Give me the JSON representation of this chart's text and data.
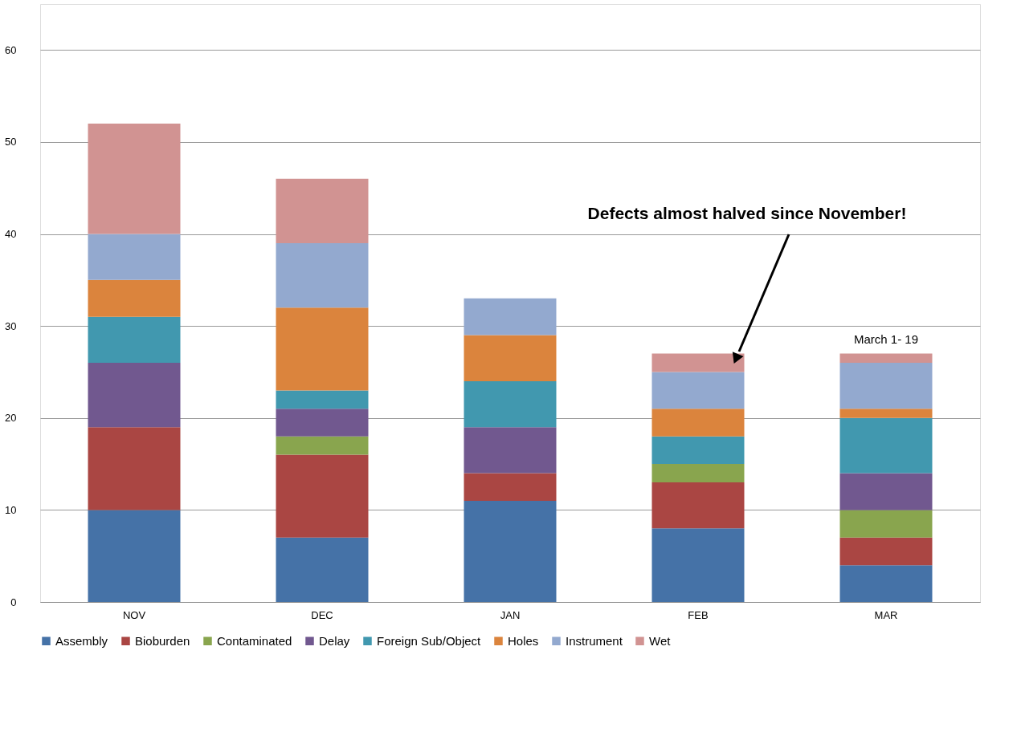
{
  "chart_data": {
    "type": "bar",
    "stacked": true,
    "categories": [
      "NOV",
      "DEC",
      "JAN",
      "FEB",
      "MAR"
    ],
    "series": [
      {
        "name": "Assembly",
        "color": "#4572a7",
        "values": [
          10,
          7,
          11,
          8,
          4
        ]
      },
      {
        "name": "Bioburden",
        "color": "#aa4643",
        "values": [
          9,
          9,
          3,
          5,
          3
        ]
      },
      {
        "name": "Contaminated",
        "color": "#89a54e",
        "values": [
          0,
          2,
          0,
          2,
          3
        ]
      },
      {
        "name": "Delay",
        "color": "#71588f",
        "values": [
          7,
          3,
          5,
          0,
          4
        ]
      },
      {
        "name": "Foreign Sub/Object",
        "color": "#4198af",
        "values": [
          5,
          2,
          5,
          3,
          6
        ]
      },
      {
        "name": "Holes",
        "color": "#db843d",
        "values": [
          4,
          9,
          5,
          3,
          1
        ]
      },
      {
        "name": "Instrument",
        "color": "#93a9cf",
        "values": [
          5,
          7,
          4,
          4,
          5
        ]
      },
      {
        "name": "Wet",
        "color": "#d19392",
        "values": [
          12,
          7,
          0,
          2,
          1
        ]
      }
    ],
    "ylim": [
      0,
      65
    ],
    "yticks": [
      0,
      10,
      20,
      30,
      40,
      50,
      60
    ],
    "grid": "y",
    "legend": "bottom",
    "annotations": [
      "Defects almost halved since November!",
      {
        "text": "March 1- 19",
        "x": "MAR",
        "y": 27
      }
    ]
  }
}
